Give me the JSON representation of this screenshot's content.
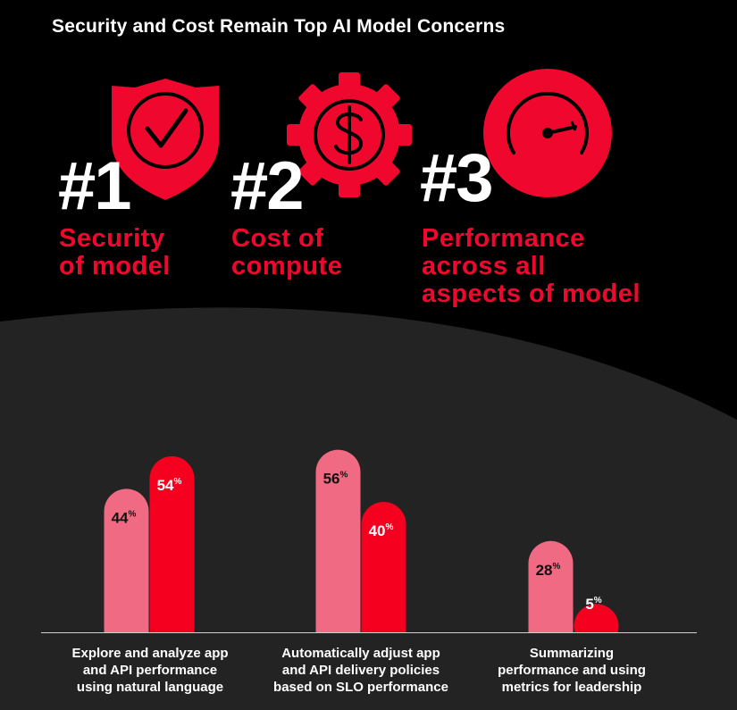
{
  "title": "Security and Cost Remain Top AI Model Concerns",
  "colors": {
    "background_top": "#000000",
    "background_bottom": "#232323",
    "accent_red": "#f0072e",
    "bar_pink": "#ef6a82",
    "bar_red": "#f5001f",
    "text": "#ffffff"
  },
  "concerns": [
    {
      "rank": "#1",
      "line1": "Security",
      "line2": "of model",
      "line3": "",
      "icon": "shield-check-icon"
    },
    {
      "rank": "#2",
      "line1": "Cost of",
      "line2": "compute",
      "line3": "",
      "icon": "gear-dollar-icon"
    },
    {
      "rank": "#3",
      "line1": "Performance",
      "line2": "across all",
      "line3": "aspects of model",
      "icon": "speedometer-icon"
    }
  ],
  "chart_data": {
    "type": "bar",
    "categories": [
      [
        "Explore and analyze app",
        "and API performance",
        "using natural language"
      ],
      [
        "Automatically adjust app",
        "and API delivery policies",
        "based on SLO performance"
      ],
      [
        "Summarizing",
        "performance and using",
        "metrics for leadership"
      ]
    ],
    "series": [
      {
        "values": [
          44,
          56,
          28
        ],
        "color": "#ef6a82"
      },
      {
        "values": [
          54,
          40,
          5
        ],
        "color": "#f5001f"
      }
    ],
    "value_suffix": "%",
    "grid": false
  }
}
